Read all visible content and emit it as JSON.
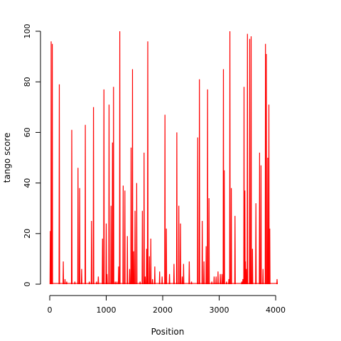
{
  "chart_data": {
    "type": "line",
    "title": "",
    "xlabel": "Position",
    "ylabel": "tango score",
    "xlim": [
      0,
      4100
    ],
    "ylim": [
      0,
      100
    ],
    "x_ticks": [
      0,
      1000,
      2000,
      3000,
      4000
    ],
    "y_ticks": [
      0,
      20,
      40,
      60,
      80,
      100
    ],
    "x_tick_labels": [
      "0",
      "1000",
      "2000",
      "3000",
      "4000"
    ],
    "y_tick_labels": [
      "0",
      "20",
      "40",
      "60",
      "80",
      "100"
    ],
    "grid": false,
    "legend": "none",
    "colors": {
      "series": "#ff0000",
      "axes": "#000000"
    },
    "series": [
      {
        "peaks": [
          [
            10,
            21
          ],
          [
            25,
            96
          ],
          [
            45,
            95
          ],
          [
            170,
            79
          ],
          [
            240,
            9
          ],
          [
            270,
            2
          ],
          [
            300,
            1
          ],
          [
            390,
            61
          ],
          [
            445,
            1
          ],
          [
            500,
            46
          ],
          [
            530,
            38
          ],
          [
            565,
            6
          ],
          [
            630,
            63
          ],
          [
            700,
            1
          ],
          [
            740,
            25
          ],
          [
            775,
            70
          ],
          [
            830,
            1
          ],
          [
            860,
            3
          ],
          [
            935,
            18
          ],
          [
            960,
            77
          ],
          [
            1000,
            24
          ],
          [
            1015,
            4
          ],
          [
            1050,
            71
          ],
          [
            1085,
            31
          ],
          [
            1110,
            56
          ],
          [
            1130,
            78
          ],
          [
            1160,
            1
          ],
          [
            1190,
            1
          ],
          [
            1220,
            7
          ],
          [
            1240,
            100
          ],
          [
            1300,
            39
          ],
          [
            1330,
            37
          ],
          [
            1375,
            19
          ],
          [
            1415,
            6
          ],
          [
            1440,
            54
          ],
          [
            1465,
            85
          ],
          [
            1485,
            13
          ],
          [
            1510,
            29
          ],
          [
            1540,
            40
          ],
          [
            1600,
            1
          ],
          [
            1640,
            29
          ],
          [
            1670,
            52
          ],
          [
            1690,
            3
          ],
          [
            1715,
            14
          ],
          [
            1735,
            96
          ],
          [
            1765,
            11
          ],
          [
            1790,
            18
          ],
          [
            1820,
            2
          ],
          [
            1860,
            7
          ],
          [
            1945,
            5
          ],
          [
            1990,
            3
          ],
          [
            2040,
            67
          ],
          [
            2065,
            22
          ],
          [
            2120,
            4
          ],
          [
            2200,
            8
          ],
          [
            2250,
            60
          ],
          [
            2285,
            31
          ],
          [
            2315,
            24
          ],
          [
            2345,
            3
          ],
          [
            2370,
            8
          ],
          [
            2470,
            9
          ],
          [
            2510,
            1
          ],
          [
            2620,
            58
          ],
          [
            2650,
            81
          ],
          [
            2700,
            25
          ],
          [
            2730,
            9
          ],
          [
            2770,
            15
          ],
          [
            2795,
            77
          ],
          [
            2820,
            34
          ],
          [
            2870,
            1
          ],
          [
            2910,
            3
          ],
          [
            2945,
            3
          ],
          [
            2980,
            5
          ],
          [
            3020,
            4
          ],
          [
            3050,
            4
          ],
          [
            3075,
            85
          ],
          [
            3090,
            45
          ],
          [
            3130,
            1
          ],
          [
            3170,
            2
          ],
          [
            3190,
            100
          ],
          [
            3215,
            38
          ],
          [
            3280,
            27
          ],
          [
            3400,
            1
          ],
          [
            3420,
            2
          ],
          [
            3440,
            78
          ],
          [
            3455,
            37
          ],
          [
            3465,
            9
          ],
          [
            3480,
            6
          ],
          [
            3500,
            99
          ],
          [
            3540,
            97
          ],
          [
            3565,
            98
          ],
          [
            3590,
            14
          ],
          [
            3650,
            32
          ],
          [
            3715,
            52
          ],
          [
            3740,
            47
          ],
          [
            3775,
            6
          ],
          [
            3820,
            95
          ],
          [
            3835,
            91
          ],
          [
            3860,
            50
          ],
          [
            3880,
            71
          ],
          [
            3895,
            22
          ],
          [
            4025,
            2
          ]
        ]
      }
    ]
  }
}
